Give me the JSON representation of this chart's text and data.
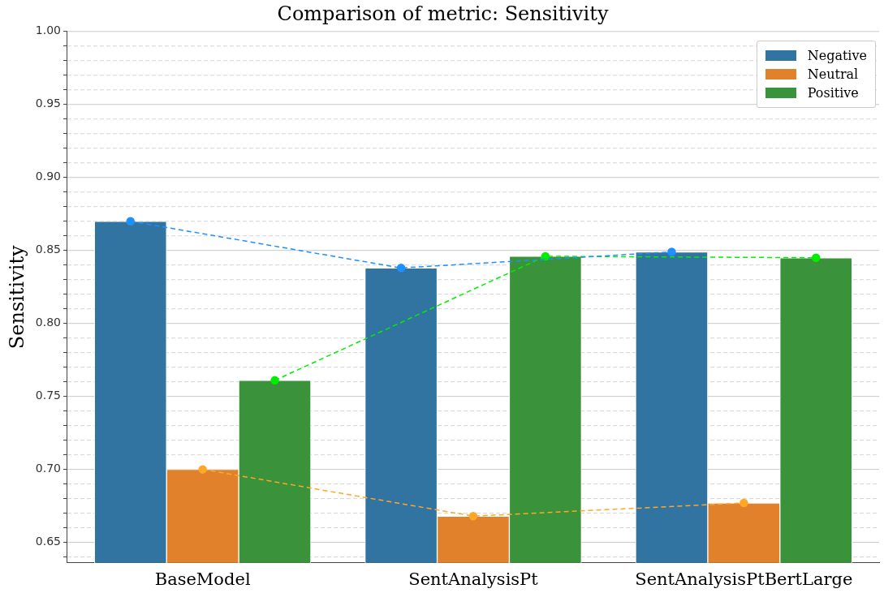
{
  "chart_data": {
    "type": "bar",
    "title": "Comparison of metric: Sensitivity",
    "ylabel": "Sensitivity",
    "categories": [
      "BaseModel",
      "SentAnalysisPt",
      "SentAnalysisPtBertLarge"
    ],
    "series": [
      {
        "name": "Negative",
        "color": "#3274a1",
        "values": [
          0.87,
          0.838,
          0.849
        ]
      },
      {
        "name": "Neutral",
        "color": "#e1812c",
        "values": [
          0.7,
          0.668,
          0.677
        ]
      },
      {
        "name": "Positive",
        "color": "#3a923a",
        "values": [
          0.761,
          0.846,
          0.845
        ]
      },
      {
        "type": "line",
        "color": "#1e90ff",
        "values": [
          0.87,
          0.838,
          0.849
        ],
        "line_style": "dashed",
        "marker": "circle"
      },
      {
        "type": "line",
        "color": "#ffa726",
        "values": [
          0.7,
          0.668,
          0.677
        ],
        "line_style": "dashed",
        "marker": "circle"
      },
      {
        "type": "line",
        "color": "#00ee00",
        "values": [
          0.761,
          0.846,
          0.845
        ],
        "line_style": "dashed",
        "marker": "circle"
      }
    ],
    "ylim": [
      0.636,
      1.0
    ],
    "yticks": [
      {
        "value": 0.64,
        "label": null
      },
      0.65,
      {
        "value": 0.66,
        "label": null
      },
      {
        "value": 0.67,
        "label": null
      },
      {
        "value": 0.68,
        "label": null
      },
      {
        "value": 0.69,
        "label": null
      },
      {
        "value": 0.7,
        "label": "0.70"
      },
      {
        "value": 0.71,
        "label": null
      },
      {
        "value": 0.72,
        "label": null
      },
      {
        "value": 0.73,
        "label": null
      },
      {
        "value": 0.74,
        "label": null
      },
      0.75,
      {
        "value": 0.76,
        "label": null
      },
      {
        "value": 0.77,
        "label": null
      },
      {
        "value": 0.78,
        "label": null
      },
      {
        "value": 0.79,
        "label": null
      },
      {
        "value": 0.8,
        "label": "0.80"
      },
      {
        "value": 0.81,
        "label": null
      },
      {
        "value": 0.82,
        "label": null
      },
      {
        "value": 0.83,
        "label": null
      },
      {
        "value": 0.84,
        "label": null
      },
      0.85,
      {
        "value": 0.86,
        "label": null
      },
      {
        "value": 0.87,
        "label": null
      },
      {
        "value": 0.88,
        "label": null
      },
      {
        "value": 0.89,
        "label": null
      },
      {
        "value": 0.9,
        "label": "0.90"
      },
      {
        "value": 0.91,
        "label": null
      },
      {
        "value": 0.92,
        "label": null
      },
      {
        "value": 0.93,
        "label": null
      },
      {
        "value": 0.94,
        "label": null
      },
      0.95,
      {
        "value": 0.96,
        "label": null
      },
      {
        "value": 0.97,
        "label": null
      },
      {
        "value": 0.98,
        "label": null
      },
      {
        "value": 0.99,
        "label": null
      },
      {
        "value": 1,
        "label": "1.00"
      }
    ],
    "grid": "y",
    "legend": "top right"
  }
}
